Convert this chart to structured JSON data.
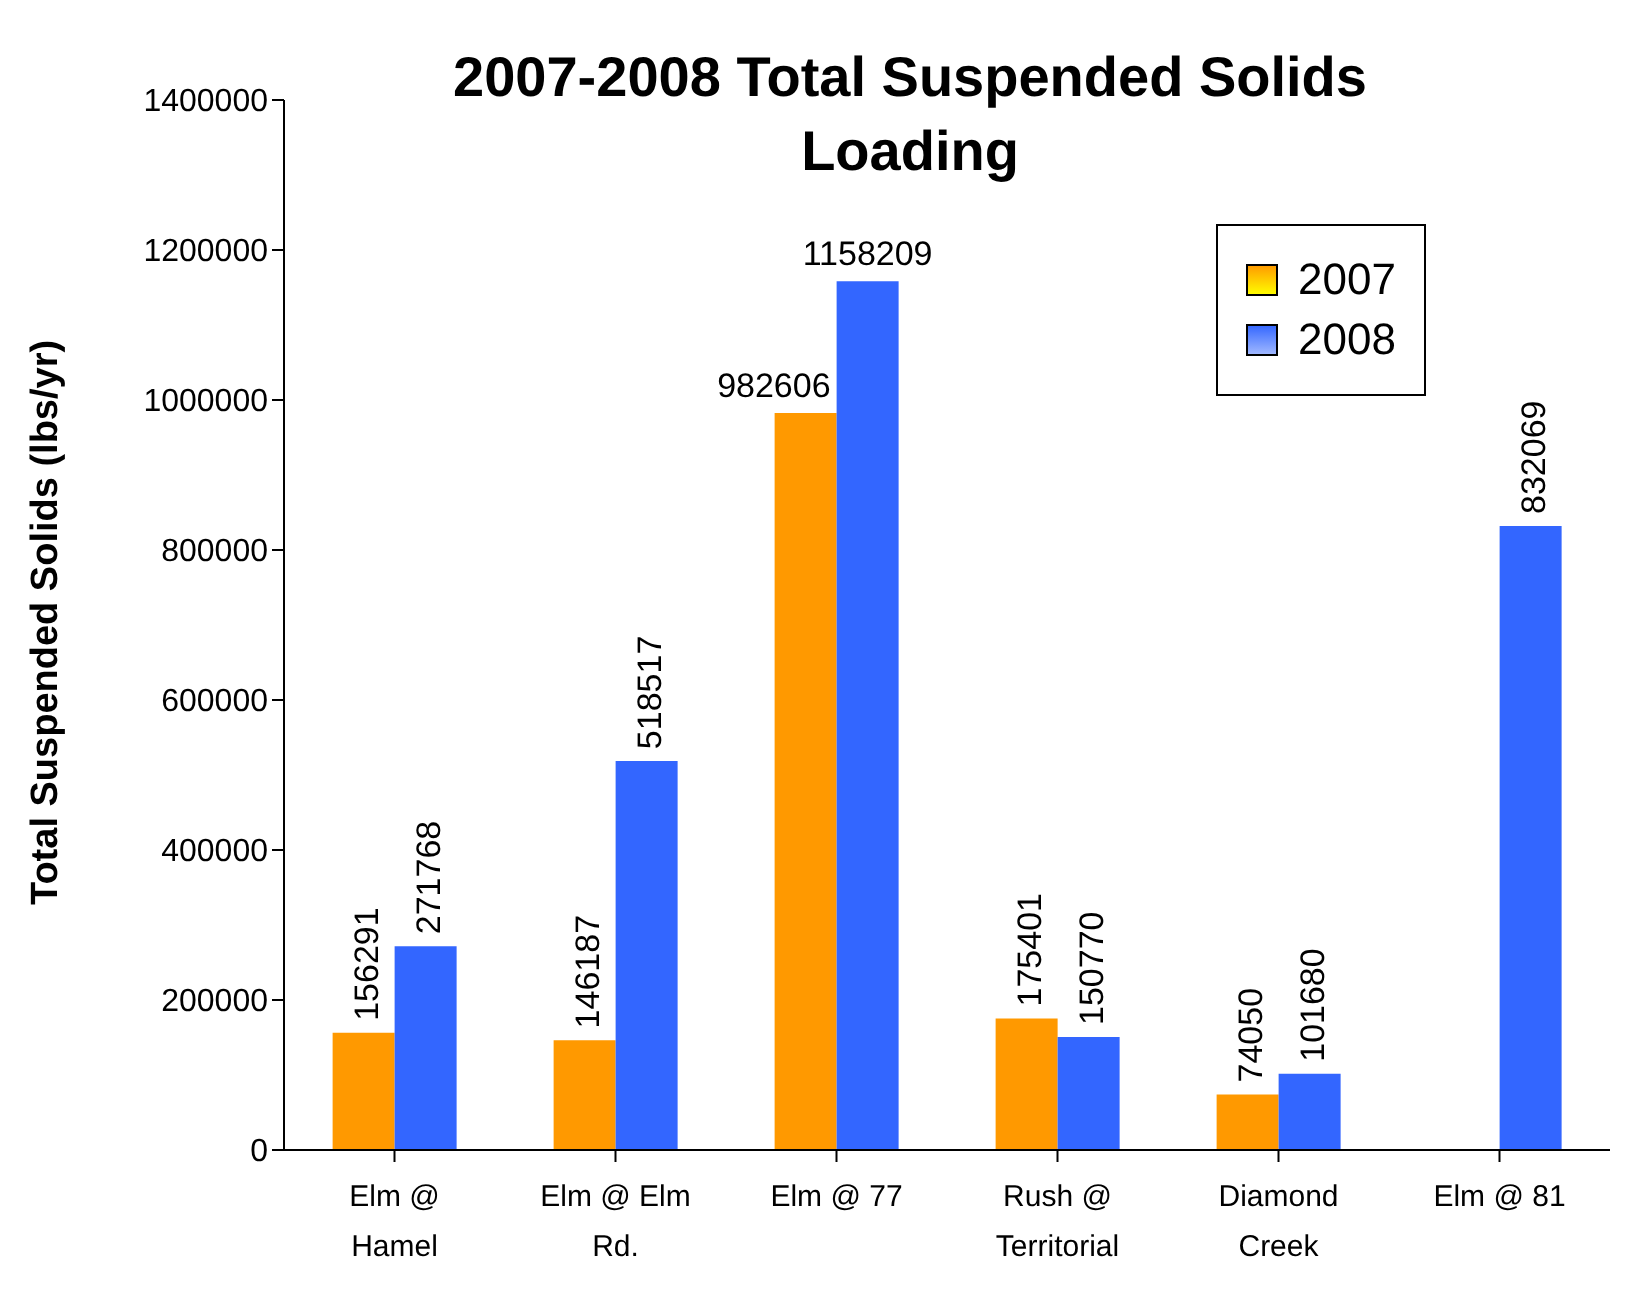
{
  "chart_data": {
    "type": "bar",
    "title": "2007-2008 Total Suspended Solids Loading",
    "ylabel": "Total Suspended Solids (lbs/yr)",
    "categories": [
      "Elm @ Hamel",
      "Elm @ Elm Rd.",
      "Elm @ 77",
      "Rush @ Territorial",
      "Diamond Creek",
      "Elm @ 81"
    ],
    "series": [
      {
        "name": "2007",
        "color": "#ff9900",
        "values": [
          156291,
          146187,
          982606,
          175401,
          74050,
          null
        ]
      },
      {
        "name": "2008",
        "color": "#3366ff",
        "values": [
          271768,
          518517,
          1158209,
          150770,
          101680,
          832069
        ]
      }
    ],
    "ylim": [
      0,
      1400000
    ],
    "yticks": [
      0,
      200000,
      400000,
      600000,
      800000,
      1000000,
      1200000,
      1400000
    ],
    "grid": false,
    "legend": "top right",
    "data_labels": true
  }
}
